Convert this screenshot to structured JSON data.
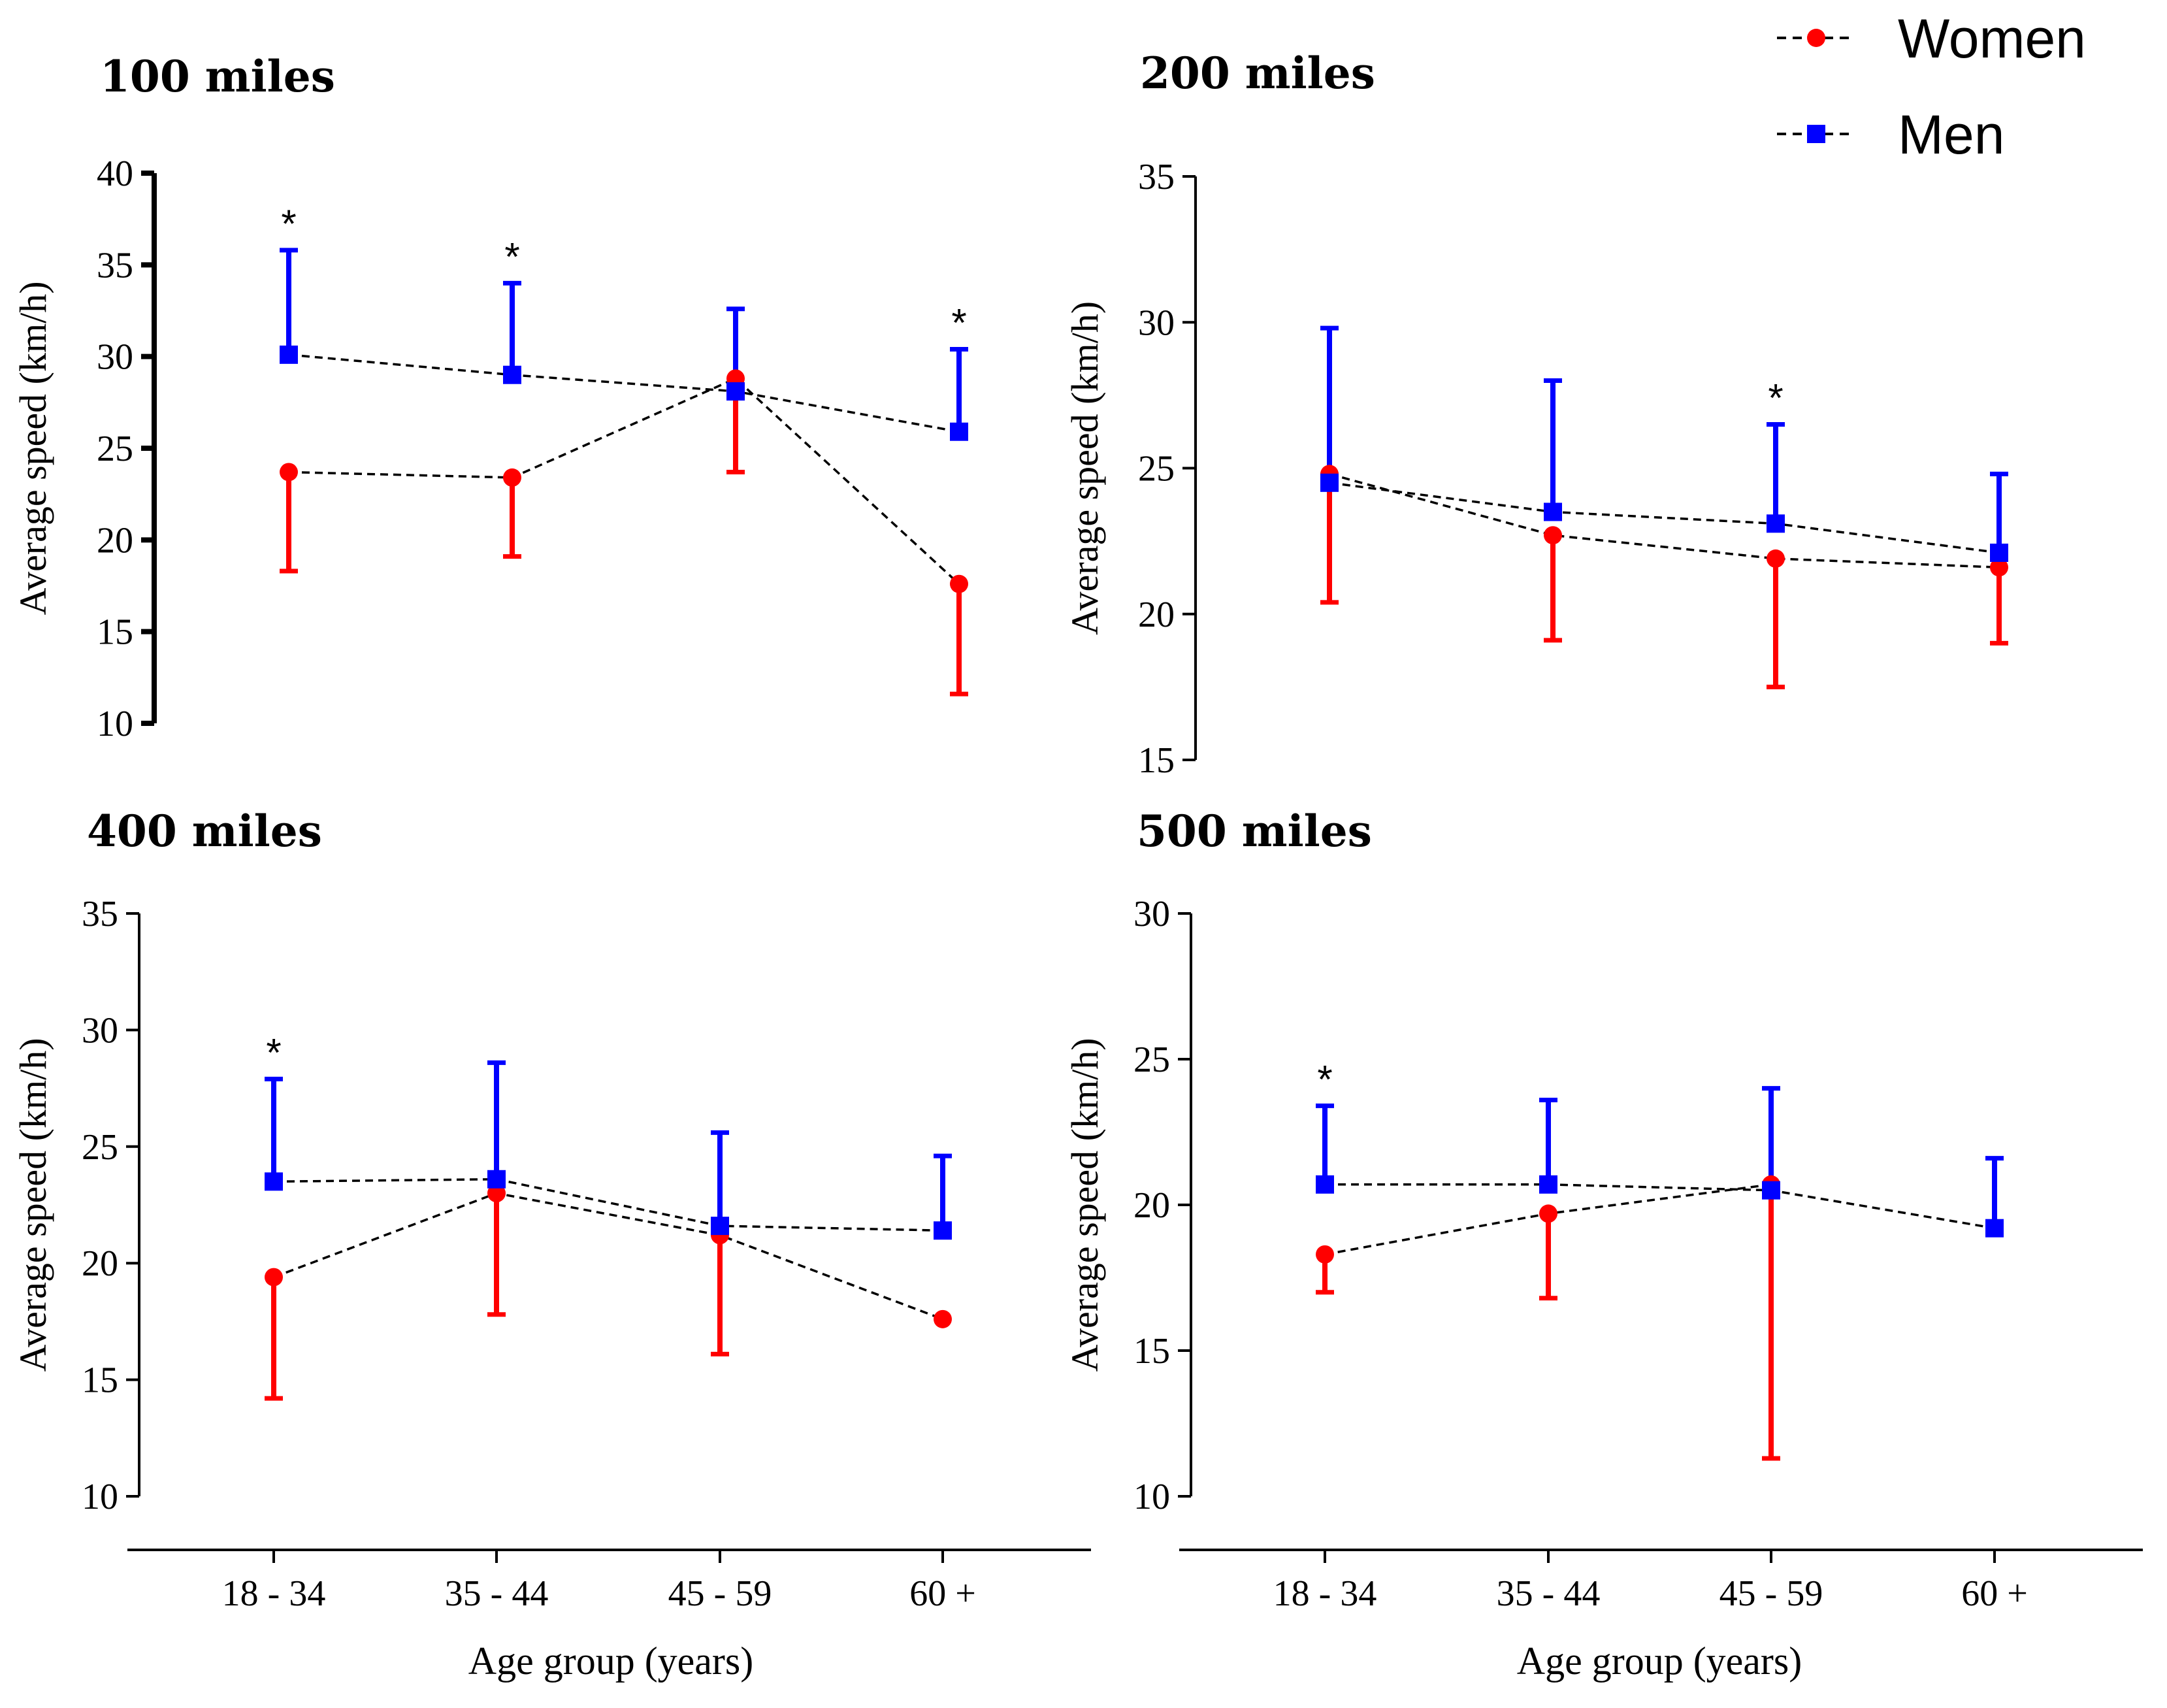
{
  "chart_data": [
    {
      "type": "line",
      "title": "100 miles",
      "ylabel": "Average speed (km/h)",
      "xlabel": "",
      "ylim": [
        10,
        40
      ],
      "yticks": [
        "10",
        "15",
        "20",
        "25",
        "30",
        "35",
        "40"
      ],
      "categories": [
        "18 - 34",
        "35 - 44",
        "45 - 59",
        "60 +"
      ],
      "series": [
        {
          "name": "Women",
          "values": [
            23.7,
            23.4,
            28.8,
            17.6
          ],
          "upper_sd": [
            18.3,
            19.1,
            23.7,
            11.6
          ],
          "color": "#ff0000"
        },
        {
          "name": "Men",
          "values": [
            30.1,
            29.0,
            28.1,
            25.9
          ],
          "upper_sd": [
            35.8,
            34.0,
            32.6,
            30.4
          ],
          "color": "#0000ff"
        }
      ],
      "significance": [
        "*",
        "*",
        "",
        "*"
      ]
    },
    {
      "type": "line",
      "title": "200 miles",
      "ylabel": "Average speed (km/h)",
      "xlabel": "",
      "ylim": [
        15,
        35
      ],
      "yticks": [
        "15",
        "20",
        "25",
        "30",
        "35"
      ],
      "categories": [
        "18 - 34",
        "35 - 44",
        "45 - 59",
        "60 +"
      ],
      "series": [
        {
          "name": "Women",
          "values": [
            24.8,
            22.7,
            21.9,
            21.6
          ],
          "upper_sd": [
            20.4,
            19.1,
            17.5,
            19.0
          ],
          "color": "#ff0000"
        },
        {
          "name": "Men",
          "values": [
            24.5,
            23.5,
            23.1,
            22.1
          ],
          "upper_sd": [
            29.8,
            28.0,
            26.5,
            24.8
          ],
          "color": "#0000ff"
        }
      ],
      "significance": [
        "",
        "",
        "*",
        ""
      ]
    },
    {
      "type": "line",
      "title": "400 miles",
      "ylabel": "Average speed (km/h)",
      "xlabel": "Age group (years)",
      "ylim": [
        10,
        35
      ],
      "yticks": [
        "10",
        "15",
        "20",
        "25",
        "30",
        "35"
      ],
      "categories": [
        "18 - 34",
        "35 - 44",
        "45 - 59",
        "60 +"
      ],
      "series": [
        {
          "name": "Women",
          "values": [
            19.4,
            23.0,
            21.2,
            17.6
          ],
          "upper_sd": [
            14.2,
            17.8,
            16.1,
            null
          ],
          "color": "#ff0000"
        },
        {
          "name": "Men",
          "values": [
            23.5,
            23.6,
            21.6,
            21.4
          ],
          "upper_sd": [
            27.9,
            28.6,
            25.6,
            24.6
          ],
          "color": "#0000ff"
        }
      ],
      "significance": [
        "*",
        "",
        "",
        ""
      ]
    },
    {
      "type": "line",
      "title": "500 miles",
      "ylabel": "Average speed (km/h)",
      "xlabel": "Age group (years)",
      "ylim": [
        10,
        30
      ],
      "yticks": [
        "10",
        "15",
        "20",
        "25",
        "30"
      ],
      "categories": [
        "18 - 34",
        "35 - 44",
        "45 - 59",
        "60 +"
      ],
      "series": [
        {
          "name": "Women",
          "values": [
            18.3,
            19.7,
            20.7,
            null
          ],
          "upper_sd": [
            17.0,
            16.8,
            11.3,
            null
          ],
          "color": "#ff0000"
        },
        {
          "name": "Men",
          "values": [
            20.7,
            20.7,
            20.5,
            19.2
          ],
          "upper_sd": [
            23.4,
            23.6,
            24.0,
            21.6
          ],
          "color": "#0000ff"
        }
      ],
      "significance": [
        "*",
        "",
        "",
        ""
      ]
    }
  ],
  "legend": {
    "position": "top-right",
    "items": [
      {
        "label": "Women",
        "color": "#ff0000",
        "marker": "circle"
      },
      {
        "label": "Men",
        "color": "#0000ff",
        "marker": "square"
      }
    ]
  }
}
